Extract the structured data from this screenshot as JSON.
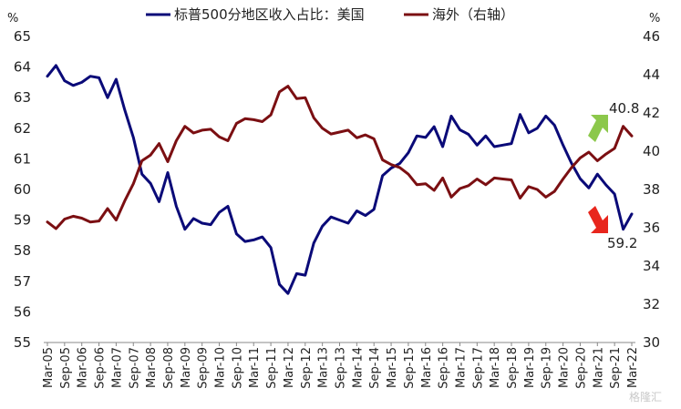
{
  "chart_data": {
    "type": "line",
    "y_unit_left": "%",
    "y_unit_right": "%",
    "ylim_left": [
      55,
      65
    ],
    "ylim_right": [
      30,
      46
    ],
    "yticks_left": [
      55,
      56,
      57,
      58,
      59,
      60,
      61,
      62,
      63,
      64,
      65
    ],
    "yticks_right": [
      30,
      32,
      34,
      36,
      38,
      40,
      42,
      44,
      46
    ],
    "grid": false,
    "legend_position": "top",
    "x": [
      "Mar-05",
      "Jun-05",
      "Sep-05",
      "Dec-05",
      "Mar-06",
      "Jun-06",
      "Sep-06",
      "Dec-06",
      "Mar-07",
      "Jun-07",
      "Sep-07",
      "Dec-07",
      "Mar-08",
      "Jun-08",
      "Sep-08",
      "Dec-08",
      "Mar-09",
      "Jun-09",
      "Sep-09",
      "Dec-09",
      "Mar-10",
      "Jun-10",
      "Sep-10",
      "Dec-10",
      "Mar-11",
      "Jun-11",
      "Sep-11",
      "Dec-11",
      "Mar-12",
      "Jun-12",
      "Sep-12",
      "Dec-12",
      "Mar-13",
      "Jun-13",
      "Sep-13",
      "Dec-13",
      "Mar-14",
      "Jun-14",
      "Sep-14",
      "Dec-14",
      "Mar-15",
      "Jun-15",
      "Sep-15",
      "Dec-15",
      "Mar-16",
      "Jun-16",
      "Sep-16",
      "Dec-16",
      "Mar-17",
      "Jun-17",
      "Sep-17",
      "Dec-17",
      "Mar-18",
      "Jun-18",
      "Sep-18",
      "Dec-18",
      "Mar-19",
      "Jun-19",
      "Sep-19",
      "Dec-19",
      "Mar-20",
      "Jun-20",
      "Sep-20",
      "Dec-20",
      "Mar-21",
      "Jun-21",
      "Sep-21",
      "Dec-21",
      "Mar-22"
    ],
    "x_tick_labels": [
      "Mar-05",
      "Sep-05",
      "Mar-06",
      "Sep-06",
      "Mar-07",
      "Sep-07",
      "Mar-08",
      "Sep-08",
      "Mar-09",
      "Sep-09",
      "Mar-10",
      "Sep-10",
      "Mar-11",
      "Sep-11",
      "Mar-12",
      "Sep-12",
      "Mar-13",
      "Sep-13",
      "Mar-14",
      "Sep-14",
      "Mar-15",
      "Sep-15",
      "Mar-16",
      "Sep-16",
      "Mar-17",
      "Sep-17",
      "Mar-18",
      "Sep-18",
      "Mar-19",
      "Sep-19",
      "Mar-20",
      "Sep-20",
      "Mar-21",
      "Sep-21",
      "Mar-22"
    ],
    "series": [
      {
        "name": "标普500分地区收入占比：美国",
        "axis": "left",
        "color": "#0a0a78",
        "values": [
          63.7,
          64.05,
          63.55,
          63.4,
          63.5,
          63.7,
          63.65,
          63.0,
          63.6,
          62.6,
          61.7,
          60.5,
          60.2,
          59.6,
          60.55,
          59.45,
          58.7,
          59.05,
          58.9,
          58.85,
          59.25,
          59.45,
          58.55,
          58.3,
          58.35,
          58.45,
          58.1,
          56.9,
          56.6,
          57.25,
          57.2,
          58.25,
          58.8,
          59.1,
          59.0,
          58.9,
          59.3,
          59.15,
          59.35,
          60.45,
          60.7,
          60.85,
          61.2,
          61.75,
          61.7,
          62.05,
          61.4,
          62.4,
          61.95,
          61.8,
          61.45,
          61.75,
          61.4,
          61.45,
          61.5,
          62.45,
          61.85,
          62.0,
          62.4,
          62.1,
          61.45,
          60.85,
          60.35,
          60.05,
          60.5,
          60.15,
          59.85,
          58.7,
          59.2
        ]
      },
      {
        "name": "海外（右轴）",
        "axis": "right",
        "color": "#7b0f12",
        "values": [
          36.3,
          35.95,
          36.45,
          36.6,
          36.5,
          36.3,
          36.35,
          37.0,
          36.4,
          37.4,
          38.3,
          39.5,
          39.8,
          40.4,
          39.45,
          40.55,
          41.3,
          40.95,
          41.1,
          41.15,
          40.75,
          40.55,
          41.45,
          41.7,
          41.65,
          41.55,
          41.9,
          43.1,
          43.4,
          42.75,
          42.8,
          41.75,
          41.2,
          40.9,
          41.0,
          41.1,
          40.7,
          40.85,
          40.65,
          39.55,
          39.3,
          39.15,
          38.8,
          38.25,
          38.3,
          37.95,
          38.6,
          37.6,
          38.05,
          38.2,
          38.55,
          38.25,
          38.6,
          38.55,
          38.5,
          37.55,
          38.15,
          38.0,
          37.6,
          37.9,
          38.55,
          39.15,
          39.65,
          39.95,
          39.5,
          39.85,
          40.15,
          41.3,
          40.8
        ]
      }
    ],
    "annotations": [
      {
        "text": "40.8",
        "series": 1,
        "arrow": "up",
        "arrow_color": "#8cc84b"
      },
      {
        "text": "59.2",
        "series": 0,
        "arrow": "down",
        "arrow_color": "#e8261d"
      }
    ]
  },
  "watermark": "格隆汇"
}
